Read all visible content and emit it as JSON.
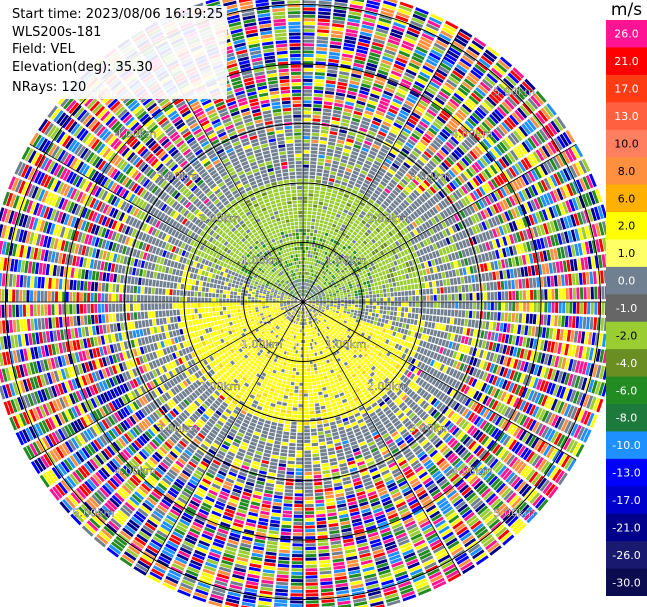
{
  "info": {
    "start_time": "Start time: 2023/08/06 16:19:25",
    "instrument": "WLS200s-181",
    "field": "Field: VEL",
    "elevation": "Elevation(deg): 35.30",
    "nrays": "NRays: 120"
  },
  "chart_data": {
    "type": "heatmap",
    "projection": "polar-ppi",
    "field": "VEL",
    "n_rays": 120,
    "range_rings_km": [
      1.0,
      2.0,
      3.0,
      4.0,
      5.0
    ],
    "range_ring_labels": [
      "1.00km",
      "2.00km",
      "3.00km",
      "4.00km",
      "5.00km"
    ],
    "max_range_km": 5.3,
    "colorbar": {
      "unit": "m/s",
      "ticks": [
        "26.0",
        "21.0",
        "17.0",
        "13.0",
        "10.0",
        "8.0",
        "6.0",
        "2.0",
        "1.0",
        "0.0",
        "-1.0",
        "-2.0",
        "-4.0",
        "-6.0",
        "-8.0",
        "-10.0",
        "-13.0",
        "-17.0",
        "-21.0",
        "-26.0",
        "-30.0"
      ],
      "colors": [
        "#ff1493",
        "#ff0000",
        "#ff3c14",
        "#ff6040",
        "#ff8060",
        "#ff9040",
        "#ffb000",
        "#ffff00",
        "#ffff66",
        "#708090",
        "#666666",
        "#9acd32",
        "#6b8e23",
        "#228b22",
        "#1e7a3c",
        "#1e90ff",
        "#0000ff",
        "#0000cd",
        "#00008b",
        "#191970",
        "#0b0b50"
      ]
    },
    "regions": [
      {
        "from_km": 0.0,
        "to_km": 2.0,
        "pattern": "velocity dipole",
        "toward_color": "#ffff00",
        "away_color": "#9acd32"
      },
      {
        "from_km": 2.0,
        "to_km": 3.2,
        "pattern": "mixed signal",
        "colors": [
          "#708090",
          "#9acd32",
          "#ffff00"
        ]
      },
      {
        "from_km": 3.2,
        "to_km": 5.3,
        "pattern": "noise",
        "colors": [
          "#ff1493",
          "#ff0000",
          "#ffff00",
          "#0000ff",
          "#00008b",
          "#1e90ff",
          "#708090",
          "#ff9040",
          "#9acd32",
          "#228b22"
        ]
      }
    ]
  }
}
